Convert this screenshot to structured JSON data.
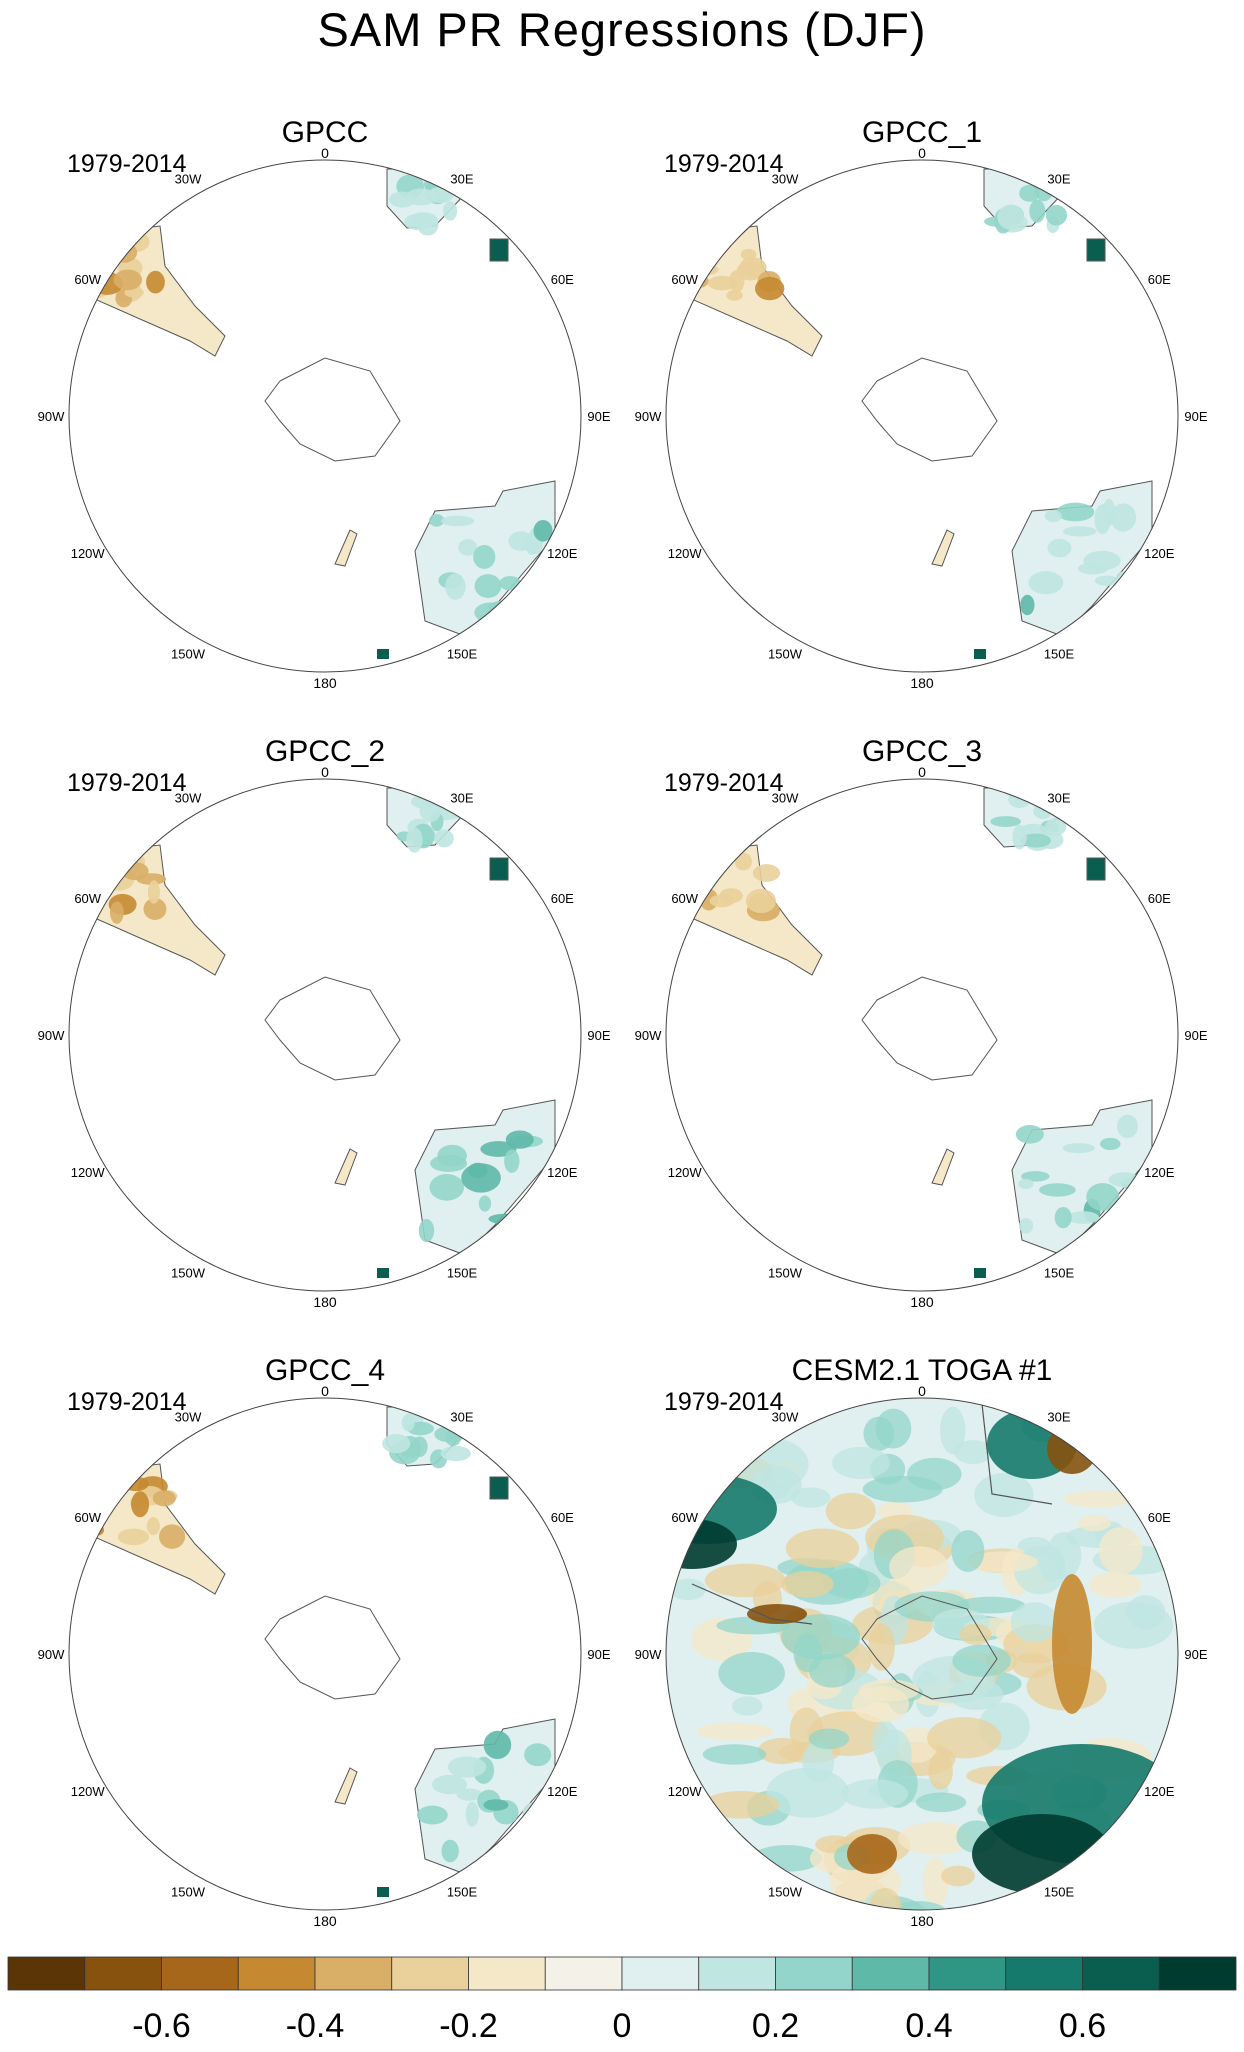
{
  "title": "SAM PR Regressions (DJF)",
  "panels": [
    {
      "title": "GPCC",
      "period": "1979-2014",
      "dataset": "observed",
      "intensity": 0.55
    },
    {
      "title": "GPCC_1",
      "period": "1979-2014",
      "dataset": "observed",
      "intensity": 0.6
    },
    {
      "title": "GPCC_2",
      "period": "1979-2014",
      "dataset": "observed",
      "intensity": 0.6
    },
    {
      "title": "GPCC_3",
      "period": "1979-2014",
      "dataset": "observed",
      "intensity": 0.6
    },
    {
      "title": "GPCC_4",
      "period": "1979-2014",
      "dataset": "observed",
      "intensity": 0.65
    },
    {
      "title": "CESM2.1 TOGA #1",
      "period": "1979-2014",
      "dataset": "model",
      "intensity": 1.0
    }
  ],
  "map_labels": {
    "north": "0",
    "south": "180",
    "lon_labels": [
      "30W",
      "30E",
      "60W",
      "60E",
      "90W",
      "90E",
      "120W",
      "120E",
      "150W",
      "150E"
    ]
  },
  "colorbar": {
    "colors": [
      "#5c3506",
      "#86520e",
      "#a7671a",
      "#c58a31",
      "#d9ae67",
      "#ead09a",
      "#f5e8c9",
      "#f4f1e8",
      "#e0efef",
      "#bfe6e1",
      "#93d5ca",
      "#5fb9a9",
      "#2f9686",
      "#157a6b",
      "#0a5e50",
      "#003b30"
    ],
    "tick_labels": [
      "-0.6",
      "-0.4",
      "-0.2",
      "0",
      "0.2",
      "0.4",
      "0.6"
    ]
  }
}
